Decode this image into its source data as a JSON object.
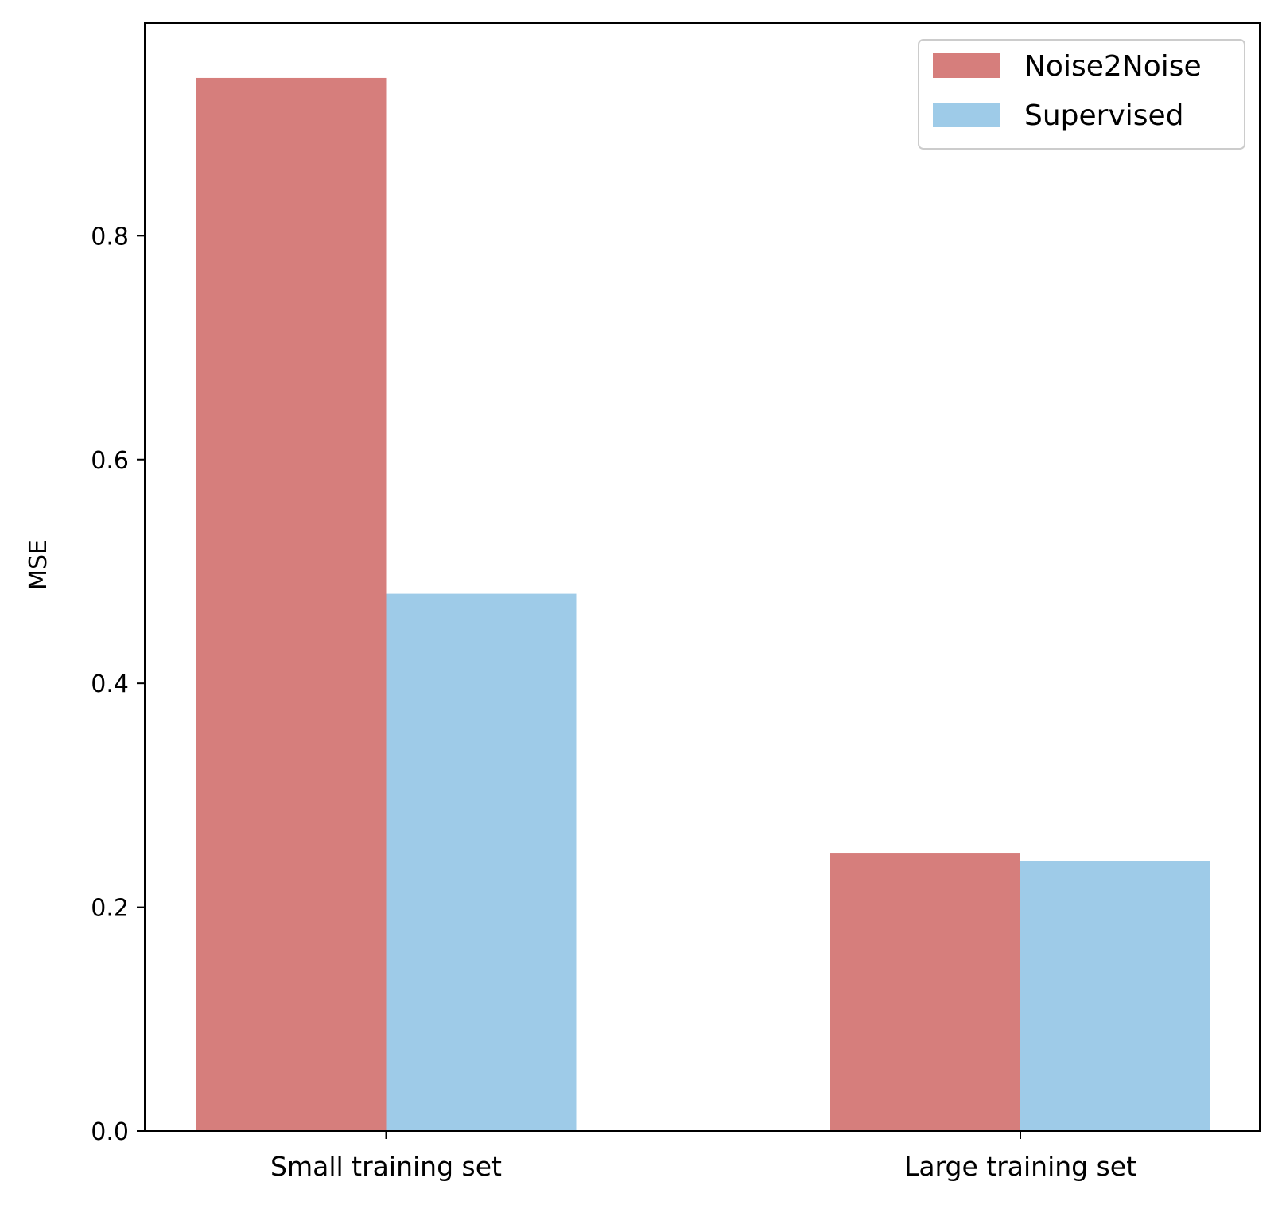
{
  "chart_data": {
    "type": "bar",
    "title": "",
    "xlabel": "",
    "ylabel": "MSE",
    "categories": [
      "Small training set",
      "Large training set"
    ],
    "series": [
      {
        "name": "Noise2Noise",
        "color": "#d67e7c",
        "values": [
          0.941,
          0.248
        ]
      },
      {
        "name": "Supervised",
        "color": "#9ecbe8",
        "values": [
          0.48,
          0.241
        ]
      }
    ],
    "ylim": [
      0,
      0.99
    ],
    "yticks": [
      0.0,
      0.2,
      0.4,
      0.6,
      0.8
    ],
    "ytick_labels": [
      "0.0",
      "0.2",
      "0.4",
      "0.6",
      "0.8"
    ],
    "grid": false,
    "legend": {
      "position": "top-right"
    }
  }
}
